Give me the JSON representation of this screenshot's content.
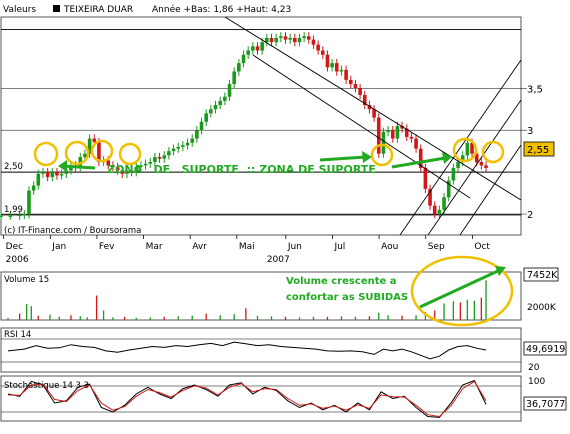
{
  "header": {
    "valeurs_label": "Valeurs",
    "name": "TEIXEIRA DUAR",
    "stats": "Année +Bas: 1,86 +Haut: 4,23"
  },
  "credit": "(c) IT-Finance.com / Boursorama",
  "price_panel": {
    "y_ticks": [
      {
        "v": 3.5,
        "label": "3,5"
      },
      {
        "v": 3,
        "label": "3"
      },
      {
        "v": 2,
        "label": "2"
      }
    ],
    "left_refs": [
      {
        "v": 2.5,
        "label": "2,50"
      },
      {
        "v": 1.99,
        "label": "1,99"
      }
    ],
    "current_value": "2,55",
    "x_months": [
      {
        "label": "Dec",
        "x": 0.2
      },
      {
        "label": "Jan",
        "x": 2.2
      },
      {
        "label": "Fev",
        "x": 4.2
      },
      {
        "label": "Mar",
        "x": 6.2
      },
      {
        "label": "Avr",
        "x": 8.2
      },
      {
        "label": "Mai",
        "x": 10.2
      },
      {
        "label": "Jun",
        "x": 12.3
      },
      {
        "label": "Jul",
        "x": 14.3
      },
      {
        "label": "Aou",
        "x": 16.3
      },
      {
        "label": "Sep",
        "x": 18.3
      },
      {
        "label": "Oct",
        "x": 20.3
      }
    ],
    "years": [
      {
        "label": "2006",
        "x": 0.2
      },
      {
        "label": "2007",
        "x": 11.4
      }
    ],
    "annotation": "ZONA   DE   SUPORTE  :: ZONA DE SUPORTE"
  },
  "volume_panel": {
    "label": "Volume 15",
    "current_value": "7452K",
    "tick": "2000K",
    "annotation_line1": "Volume crescente a",
    "annotation_line2": "confortar as SUBIDAS"
  },
  "rsi_panel": {
    "label": "RSI 14",
    "current_value": "49,6919",
    "tick": "20"
  },
  "stoch_panel": {
    "label": "Stochastique 14 3 3",
    "current_value": "36,7077",
    "tick": "100"
  },
  "colors": {
    "up": "#1a9a1a",
    "down": "#d01818",
    "annotation_green": "#22aa22",
    "circle_yellow": "#f0c000",
    "value_box": "#f0c000"
  },
  "chart_data": [
    {
      "type": "candlestick",
      "title": "TEIXEIRA DUAR",
      "x_unit": "months since start of Dec 2006",
      "xlim": [
        0,
        22.3
      ],
      "ylim": [
        1.75,
        4.35
      ],
      "close": [
        [
          0.0,
          1.98
        ],
        [
          0.4,
          1.98
        ],
        [
          0.8,
          1.99
        ],
        [
          1.0,
          2.0
        ],
        [
          1.2,
          2.28
        ],
        [
          1.4,
          2.34
        ],
        [
          1.6,
          2.48
        ],
        [
          1.8,
          2.5
        ],
        [
          2.0,
          2.44
        ],
        [
          2.2,
          2.5
        ],
        [
          2.4,
          2.46
        ],
        [
          2.6,
          2.48
        ],
        [
          2.8,
          2.52
        ],
        [
          3.0,
          2.58
        ],
        [
          3.2,
          2.55
        ],
        [
          3.4,
          2.68
        ],
        [
          3.6,
          2.72
        ],
        [
          3.8,
          2.9
        ],
        [
          4.0,
          2.86
        ],
        [
          4.2,
          2.62
        ],
        [
          4.4,
          2.64
        ],
        [
          4.6,
          2.58
        ],
        [
          4.8,
          2.56
        ],
        [
          5.0,
          2.52
        ],
        [
          5.2,
          2.48
        ],
        [
          5.4,
          2.52
        ],
        [
          5.6,
          2.5
        ],
        [
          5.8,
          2.56
        ],
        [
          6.0,
          2.58
        ],
        [
          6.2,
          2.6
        ],
        [
          6.4,
          2.62
        ],
        [
          6.6,
          2.68
        ],
        [
          6.8,
          2.66
        ],
        [
          7.0,
          2.7
        ],
        [
          7.2,
          2.75
        ],
        [
          7.4,
          2.78
        ],
        [
          7.6,
          2.8
        ],
        [
          7.8,
          2.82
        ],
        [
          8.0,
          2.85
        ],
        [
          8.2,
          2.9
        ],
        [
          8.4,
          3.0
        ],
        [
          8.6,
          3.1
        ],
        [
          8.8,
          3.2
        ],
        [
          9.0,
          3.25
        ],
        [
          9.2,
          3.3
        ],
        [
          9.4,
          3.35
        ],
        [
          9.6,
          3.4
        ],
        [
          9.8,
          3.55
        ],
        [
          10.0,
          3.7
        ],
        [
          10.2,
          3.8
        ],
        [
          10.4,
          3.9
        ],
        [
          10.6,
          3.95
        ],
        [
          10.8,
          4.0
        ],
        [
          11.0,
          3.95
        ],
        [
          11.2,
          4.05
        ],
        [
          11.4,
          4.1
        ],
        [
          11.6,
          4.05
        ],
        [
          11.8,
          4.1
        ],
        [
          12.0,
          4.12
        ],
        [
          12.2,
          4.08
        ],
        [
          12.4,
          4.1
        ],
        [
          12.6,
          4.05
        ],
        [
          12.8,
          4.1
        ],
        [
          13.0,
          4.12
        ],
        [
          13.2,
          4.08
        ],
        [
          13.4,
          4.02
        ],
        [
          13.6,
          3.95
        ],
        [
          13.8,
          3.9
        ],
        [
          14.0,
          3.75
        ],
        [
          14.2,
          3.8
        ],
        [
          14.4,
          3.7
        ],
        [
          14.6,
          3.72
        ],
        [
          14.8,
          3.6
        ],
        [
          15.0,
          3.55
        ],
        [
          15.2,
          3.5
        ],
        [
          15.4,
          3.42
        ],
        [
          15.6,
          3.3
        ],
        [
          15.8,
          3.25
        ],
        [
          16.0,
          3.15
        ],
        [
          16.2,
          2.72
        ],
        [
          16.4,
          2.98
        ],
        [
          16.6,
          3.0
        ],
        [
          16.8,
          2.9
        ],
        [
          17.0,
          3.05
        ],
        [
          17.2,
          3.02
        ],
        [
          17.4,
          2.92
        ],
        [
          17.6,
          2.9
        ],
        [
          17.8,
          2.78
        ],
        [
          18.0,
          2.55
        ],
        [
          18.2,
          2.3
        ],
        [
          18.4,
          2.1
        ],
        [
          18.6,
          2.0
        ],
        [
          18.8,
          2.05
        ],
        [
          19.0,
          2.2
        ],
        [
          19.2,
          2.4
        ],
        [
          19.4,
          2.55
        ],
        [
          19.6,
          2.62
        ],
        [
          19.8,
          2.7
        ],
        [
          20.0,
          2.85
        ],
        [
          20.2,
          2.72
        ],
        [
          20.4,
          2.62
        ],
        [
          20.6,
          2.58
        ],
        [
          20.8,
          2.55
        ]
      ],
      "y_ticks": [
        "3,5",
        "3",
        "2"
      ],
      "reference_levels": [
        2.5,
        1.99
      ],
      "last_value": "2,55",
      "support_zone": [
        2.42,
        2.6
      ]
    },
    {
      "type": "bar",
      "title": "Volume 15",
      "y_unit": "thousand shares",
      "ylim": [
        0,
        9000
      ],
      "values": [
        [
          0.3,
          400
        ],
        [
          0.8,
          1200
        ],
        [
          1.1,
          3000
        ],
        [
          1.3,
          2600
        ],
        [
          1.6,
          800
        ],
        [
          2.1,
          1000
        ],
        [
          2.5,
          600
        ],
        [
          3.0,
          900
        ],
        [
          3.4,
          700
        ],
        [
          3.7,
          500
        ],
        [
          4.1,
          4600
        ],
        [
          4.4,
          1800
        ],
        [
          4.8,
          500
        ],
        [
          5.3,
          600
        ],
        [
          5.8,
          400
        ],
        [
          6.4,
          500
        ],
        [
          7.0,
          600
        ],
        [
          7.6,
          700
        ],
        [
          8.2,
          800
        ],
        [
          8.8,
          1200
        ],
        [
          9.4,
          900
        ],
        [
          10.0,
          1100
        ],
        [
          10.5,
          2200
        ],
        [
          11.0,
          800
        ],
        [
          11.6,
          700
        ],
        [
          12.2,
          600
        ],
        [
          12.8,
          500
        ],
        [
          13.4,
          600
        ],
        [
          14.0,
          600
        ],
        [
          14.6,
          700
        ],
        [
          15.2,
          600
        ],
        [
          15.8,
          700
        ],
        [
          16.2,
          1400
        ],
        [
          16.6,
          900
        ],
        [
          17.2,
          800
        ],
        [
          17.8,
          900
        ],
        [
          18.2,
          1500
        ],
        [
          18.6,
          1800
        ],
        [
          19.0,
          3100
        ],
        [
          19.4,
          3500
        ],
        [
          19.7,
          3300
        ],
        [
          20.0,
          3800
        ],
        [
          20.3,
          3600
        ],
        [
          20.6,
          4200
        ],
        [
          20.8,
          7452
        ]
      ],
      "last_value": "7452K",
      "y_ticks": [
        "2000K"
      ]
    },
    {
      "type": "line",
      "title": "RSI 14",
      "ylim": [
        0,
        100
      ],
      "values": [
        [
          0.3,
          48
        ],
        [
          1.0,
          52
        ],
        [
          1.5,
          60
        ],
        [
          2.0,
          54
        ],
        [
          2.5,
          55
        ],
        [
          3.0,
          62
        ],
        [
          3.5,
          58
        ],
        [
          4.0,
          56
        ],
        [
          4.5,
          48
        ],
        [
          5.0,
          45
        ],
        [
          5.5,
          50
        ],
        [
          6.0,
          54
        ],
        [
          6.5,
          58
        ],
        [
          7.0,
          56
        ],
        [
          7.5,
          60
        ],
        [
          8.0,
          58
        ],
        [
          8.5,
          62
        ],
        [
          9.0,
          65
        ],
        [
          9.5,
          60
        ],
        [
          10.0,
          68
        ],
        [
          10.5,
          64
        ],
        [
          11.0,
          60
        ],
        [
          11.5,
          62
        ],
        [
          12.0,
          58
        ],
        [
          12.5,
          56
        ],
        [
          13.0,
          54
        ],
        [
          13.5,
          52
        ],
        [
          14.0,
          48
        ],
        [
          14.5,
          47
        ],
        [
          15.0,
          48
        ],
        [
          15.5,
          46
        ],
        [
          16.0,
          40
        ],
        [
          16.4,
          52
        ],
        [
          16.8,
          48
        ],
        [
          17.2,
          52
        ],
        [
          17.6,
          46
        ],
        [
          18.0,
          38
        ],
        [
          18.4,
          30
        ],
        [
          18.8,
          36
        ],
        [
          19.2,
          50
        ],
        [
          19.6,
          58
        ],
        [
          20.0,
          60
        ],
        [
          20.4,
          54
        ],
        [
          20.8,
          50
        ]
      ],
      "last_value": "49,6919",
      "y_ticks": [
        "20"
      ]
    },
    {
      "type": "line",
      "title": "Stochastique 14 3 3",
      "ylim": [
        0,
        100
      ],
      "series": [
        {
          "values": [
            [
              0.3,
              60
            ],
            [
              0.8,
              55
            ],
            [
              1.3,
              88
            ],
            [
              1.8,
              80
            ],
            [
              2.3,
              40
            ],
            [
              2.8,
              45
            ],
            [
              3.3,
              75
            ],
            [
              3.8,
              82
            ],
            [
              4.3,
              30
            ],
            [
              4.8,
              20
            ],
            [
              5.3,
              35
            ],
            [
              5.8,
              60
            ],
            [
              6.3,
              75
            ],
            [
              6.8,
              60
            ],
            [
              7.3,
              50
            ],
            [
              7.8,
              72
            ],
            [
              8.3,
              80
            ],
            [
              8.8,
              70
            ],
            [
              9.3,
              55
            ],
            [
              9.8,
              80
            ],
            [
              10.3,
              85
            ],
            [
              10.8,
              60
            ],
            [
              11.3,
              75
            ],
            [
              11.8,
              68
            ],
            [
              12.3,
              45
            ],
            [
              12.8,
              30
            ],
            [
              13.3,
              40
            ],
            [
              13.8,
              25
            ],
            [
              14.3,
              35
            ],
            [
              14.8,
              20
            ],
            [
              15.3,
              40
            ],
            [
              15.8,
              25
            ],
            [
              16.3,
              65
            ],
            [
              16.8,
              50
            ],
            [
              17.3,
              55
            ],
            [
              17.8,
              30
            ],
            [
              18.3,
              10
            ],
            [
              18.8,
              8
            ],
            [
              19.3,
              40
            ],
            [
              19.8,
              80
            ],
            [
              20.3,
              90
            ],
            [
              20.8,
              37
            ]
          ]
        },
        {
          "values": [
            [
              0.3,
              58
            ],
            [
              0.8,
              57
            ],
            [
              1.3,
              80
            ],
            [
              1.8,
              82
            ],
            [
              2.3,
              48
            ],
            [
              2.8,
              43
            ],
            [
              3.3,
              68
            ],
            [
              3.8,
              80
            ],
            [
              4.3,
              40
            ],
            [
              4.8,
              24
            ],
            [
              5.3,
              32
            ],
            [
              5.8,
              55
            ],
            [
              6.3,
              70
            ],
            [
              6.8,
              63
            ],
            [
              7.3,
              53
            ],
            [
              7.8,
              68
            ],
            [
              8.3,
              78
            ],
            [
              8.8,
              73
            ],
            [
              9.3,
              58
            ],
            [
              9.8,
              75
            ],
            [
              10.3,
              83
            ],
            [
              10.8,
              65
            ],
            [
              11.3,
              72
            ],
            [
              11.8,
              70
            ],
            [
              12.3,
              50
            ],
            [
              12.8,
              35
            ],
            [
              13.3,
              38
            ],
            [
              13.8,
              28
            ],
            [
              14.3,
              33
            ],
            [
              14.8,
              24
            ],
            [
              15.3,
              36
            ],
            [
              15.8,
              28
            ],
            [
              16.3,
              58
            ],
            [
              16.8,
              54
            ],
            [
              17.3,
              53
            ],
            [
              17.8,
              35
            ],
            [
              18.3,
              14
            ],
            [
              18.8,
              10
            ],
            [
              19.3,
              34
            ],
            [
              19.8,
              72
            ],
            [
              20.3,
              88
            ],
            [
              20.8,
              45
            ]
          ]
        }
      ],
      "last_value": "36,7077",
      "y_ticks": [
        "100"
      ]
    }
  ]
}
